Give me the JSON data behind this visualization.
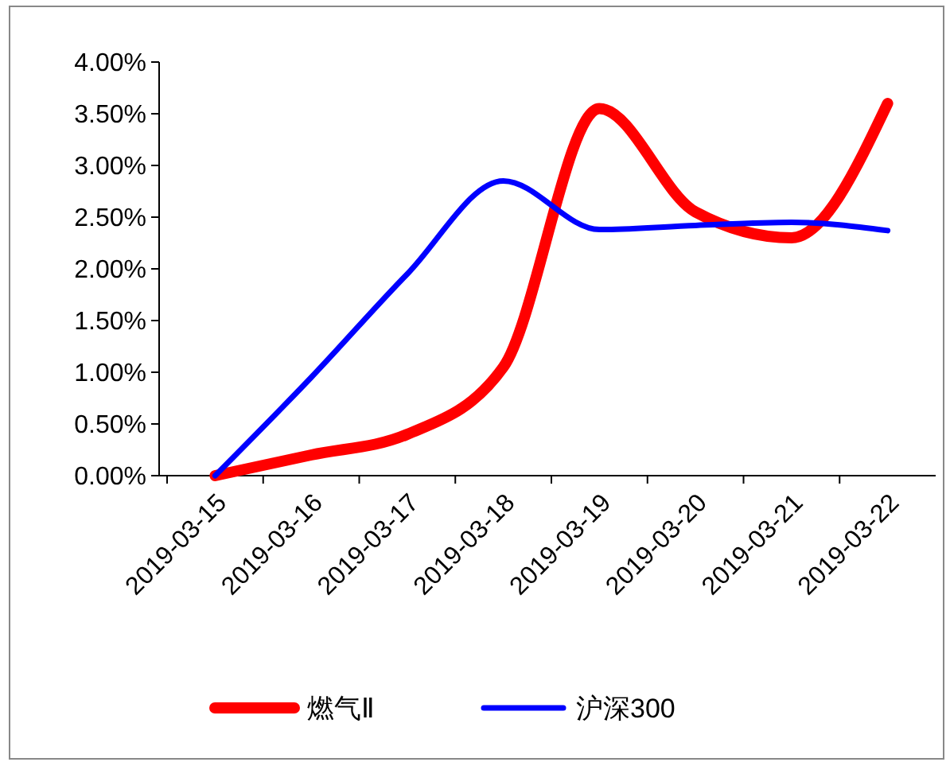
{
  "chart_data": {
    "type": "line",
    "categories": [
      "2019-03-15",
      "2019-03-16",
      "2019-03-17",
      "2019-03-18",
      "2019-03-19",
      "2019-03-20",
      "2019-03-21",
      "2019-03-22"
    ],
    "series": [
      {
        "name": "燃气Ⅱ",
        "color": "#ff0000",
        "values": [
          0,
          0.2,
          0.4,
          1.05,
          3.55,
          2.55,
          2.3,
          3.6
        ]
      },
      {
        "name": "沪深300",
        "color": "#0000ff",
        "values": [
          0,
          0.95,
          1.95,
          2.85,
          2.38,
          2.42,
          2.45,
          2.37
        ]
      }
    ],
    "ylim": [
      0,
      4
    ],
    "yticks": [
      {
        "value": 0,
        "label": "0.00%"
      },
      {
        "value": 0.5,
        "label": "0.50%"
      },
      {
        "value": 1,
        "label": "1.00%"
      },
      {
        "value": 1.5,
        "label": "1.50%"
      },
      {
        "value": 2,
        "label": "2.00%"
      },
      {
        "value": 2.5,
        "label": "2.50%"
      },
      {
        "value": 3,
        "label": "3.00%"
      },
      {
        "value": 3.5,
        "label": "3.50%"
      },
      {
        "value": 4,
        "label": "4.00%"
      }
    ],
    "grid": false,
    "legend": "bottom",
    "marker": "none",
    "line_style": "solid"
  }
}
